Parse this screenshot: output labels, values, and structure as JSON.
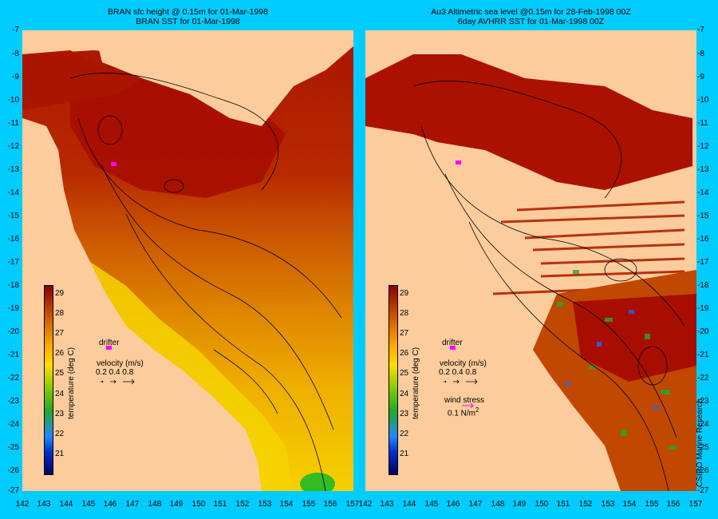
{
  "left_panel": {
    "title_line1": "BRAN sfc height @ 0.15m  for 01-Mar-1998",
    "title_line2": "BRAN SST for 01-Mar-1998"
  },
  "right_panel": {
    "title_line1": "Au3 Altimetric sea level  @0.15m  for 28-Feb-1998 00Z",
    "title_line2": "6day AVHRR SST for 01-Mar-1998 00Z"
  },
  "y_ticks": [
    "-7",
    "-8",
    "-9",
    "-10",
    "-11",
    "-12",
    "-13",
    "-14",
    "-15",
    "-16",
    "-17",
    "-18",
    "-19",
    "-20",
    "-21",
    "-22",
    "-23",
    "-24",
    "-25",
    "-26",
    "-27"
  ],
  "x_ticks": [
    "142",
    "143",
    "144",
    "145",
    "146",
    "147",
    "148",
    "149",
    "150",
    "151",
    "152",
    "153",
    "154",
    "155",
    "156",
    "157"
  ],
  "colorbar": {
    "label": "temperature (deg C)",
    "ticks": [
      "29",
      "28",
      "27",
      "26",
      "25",
      "24",
      "23",
      "22",
      "21"
    ],
    "min": 20.5,
    "max": 29.5
  },
  "legend": {
    "drifter": "drifter",
    "velocity_label": "velocity (m/s)",
    "velocity_values": "0.2 0.4 0.8",
    "wind_stress_label": "wind stress",
    "wind_stress_value": "0.1 N/m",
    "wind_stress_exp": "2"
  },
  "credit": "CSIRO Marine Research",
  "colors": {
    "background": "#00ccff",
    "land": "#fccc9c",
    "hot": "#aa1100",
    "warm": "#d06010",
    "cool": "#ffdd00",
    "drifter": "#ff00ff"
  }
}
